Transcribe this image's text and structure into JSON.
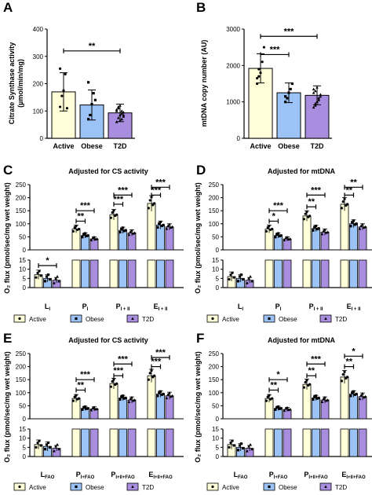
{
  "colors": {
    "Active": "#ffffd9",
    "Obese": "#9cc3f5",
    "T2D": "#a98ee0"
  },
  "panel_labels": {
    "A": "A",
    "B": "B",
    "C": "C",
    "D": "D",
    "E": "E",
    "F": "F"
  },
  "groups": [
    "Active",
    "Obese",
    "T2D"
  ],
  "chart_data": [
    {
      "id": "A",
      "type": "bar",
      "title": "",
      "ylabel": "Citrate Synthase activity\n(µmol/min/mg)",
      "ylim": [
        0,
        400
      ],
      "yticks": [
        0,
        100,
        200,
        300,
        400
      ],
      "categories": [
        "Active",
        "Obese",
        "T2D"
      ],
      "values": [
        170,
        122,
        93
      ],
      "errors": [
        70,
        55,
        32
      ],
      "points": [
        [
          115,
          155,
          175,
          235,
          110,
          255
        ],
        [
          70,
          85,
          125,
          165,
          140,
          205
        ],
        [
          60,
          75,
          85,
          90,
          95,
          100,
          110,
          120,
          70,
          80,
          105,
          115,
          65,
          100,
          85
        ]
      ],
      "significance": [
        {
          "from": 0,
          "to": 2,
          "label": "**",
          "y": 320
        }
      ]
    },
    {
      "id": "B",
      "type": "bar",
      "title": "",
      "ylabel": "mtDNA copy number (AU)",
      "ylim": [
        0,
        3000
      ],
      "yticks": [
        0,
        1000,
        2000,
        3000
      ],
      "categories": [
        "Active",
        "Obese",
        "T2D"
      ],
      "values": [
        1920,
        1250,
        1180
      ],
      "errors": [
        400,
        270,
        260
      ],
      "points": [
        [
          1500,
          1700,
          1800,
          2100,
          2500,
          1650,
          1900
        ],
        [
          1000,
          1100,
          1250,
          1350,
          1500,
          1150
        ],
        [
          850,
          950,
          1000,
          1100,
          1150,
          1250,
          1300,
          1400,
          1050,
          1200,
          1350,
          900,
          1000,
          1100
        ]
      ],
      "significance": [
        {
          "from": 0,
          "to": 1,
          "label": "***",
          "y": 2300
        },
        {
          "from": 0,
          "to": 2,
          "label": "***",
          "y": 2800
        }
      ]
    },
    {
      "id": "C",
      "type": "bar",
      "title": "Adjusted for CS activity",
      "categories": [
        "L",
        "P",
        "P",
        "E"
      ],
      "subscripts": [
        "I",
        "I",
        "I + II",
        "I + II"
      ],
      "lower": {
        "ylim": [
          0,
          15
        ],
        "yticks": [
          0,
          5,
          10,
          15
        ],
        "values": [
          [
            7,
            5,
            4
          ]
        ],
        "errors": [
          [
            2.5,
            2,
            1.5
          ]
        ],
        "significance": [
          {
            "from": 0,
            "to": 2,
            "label": "*",
            "y": 12
          }
        ]
      },
      "upper": {
        "ylim": [
          0,
          250
        ],
        "yticks": [
          0,
          50,
          100,
          150,
          200,
          250
        ],
        "values": [
          [
            80,
            55,
            42
          ],
          [
            135,
            75,
            65
          ],
          [
            178,
            95,
            88
          ]
        ],
        "errors": [
          [
            15,
            10,
            8
          ],
          [
            20,
            12,
            12
          ],
          [
            30,
            15,
            12
          ]
        ],
        "significance": [
          {
            "cat": 1,
            "from": 0,
            "to": 1,
            "label": "**",
            "y": 110
          },
          {
            "cat": 1,
            "from": 0,
            "to": 2,
            "label": "***",
            "y": 150
          },
          {
            "cat": 2,
            "from": 0,
            "to": 1,
            "label": "***",
            "y": 175
          },
          {
            "cat": 2,
            "from": 0,
            "to": 2,
            "label": "***",
            "y": 210
          },
          {
            "cat": 3,
            "from": 0,
            "to": 1,
            "label": "***",
            "y": 210
          },
          {
            "cat": 3,
            "from": 0,
            "to": 2,
            "label": "***",
            "y": 240
          }
        ]
      },
      "ylabel": "O₂ flux (pmol/sec/mg wet weight)"
    },
    {
      "id": "D",
      "type": "bar",
      "title": "Adjusted for mtDNA",
      "categories": [
        "L",
        "P",
        "P",
        "E"
      ],
      "subscripts": [
        "I",
        "I",
        "I + II",
        "I + II"
      ],
      "lower": {
        "ylim": [
          0,
          15
        ],
        "yticks": [
          0,
          5,
          10,
          15
        ],
        "values": [
          [
            6,
            5,
            4
          ]
        ],
        "errors": [
          [
            2.5,
            2,
            1.5
          ]
        ],
        "significance": []
      },
      "upper": {
        "ylim": [
          0,
          250
        ],
        "yticks": [
          0,
          50,
          100,
          150,
          200,
          250
        ],
        "values": [
          [
            80,
            55,
            42
          ],
          [
            130,
            82,
            68
          ],
          [
            175,
            100,
            88
          ]
        ],
        "errors": [
          [
            15,
            10,
            8
          ],
          [
            20,
            12,
            12
          ],
          [
            25,
            15,
            12
          ]
        ],
        "significance": [
          {
            "cat": 1,
            "from": 0,
            "to": 1,
            "label": "*",
            "y": 110
          },
          {
            "cat": 1,
            "from": 0,
            "to": 2,
            "label": "***",
            "y": 150
          },
          {
            "cat": 2,
            "from": 0,
            "to": 1,
            "label": "**",
            "y": 165
          },
          {
            "cat": 2,
            "from": 0,
            "to": 2,
            "label": "***",
            "y": 210
          },
          {
            "cat": 3,
            "from": 0,
            "to": 1,
            "label": "**",
            "y": 210
          },
          {
            "cat": 3,
            "from": 0,
            "to": 2,
            "label": "**",
            "y": 240
          }
        ]
      },
      "ylabel": "O₂ flux (pmol/sec/mg wet weight)"
    },
    {
      "id": "E",
      "type": "bar",
      "title": "Adjusted for CS activity",
      "categories": [
        "L",
        "P",
        "P",
        "E"
      ],
      "subscripts": [
        "FAO",
        "I+FAO",
        "I+II+FAO",
        "I+II+FAO"
      ],
      "lower": {
        "ylim": [
          0,
          15
        ],
        "yticks": [
          0,
          5,
          10,
          15
        ],
        "values": [
          [
            6.5,
            5.5,
            4.5
          ]
        ],
        "errors": [
          [
            2.5,
            2.5,
            1.5
          ]
        ],
        "significance": []
      },
      "upper": {
        "ylim": [
          0,
          250
        ],
        "yticks": [
          0,
          50,
          100,
          150,
          200,
          250
        ],
        "values": [
          [
            78,
            40,
            38
          ],
          [
            135,
            80,
            72
          ],
          [
            165,
            95,
            88
          ]
        ],
        "errors": [
          [
            15,
            8,
            8
          ],
          [
            20,
            10,
            12
          ],
          [
            25,
            12,
            14
          ]
        ],
        "significance": [
          {
            "cat": 1,
            "from": 0,
            "to": 1,
            "label": "**",
            "y": 110
          },
          {
            "cat": 1,
            "from": 0,
            "to": 2,
            "label": "***",
            "y": 150
          },
          {
            "cat": 2,
            "from": 0,
            "to": 1,
            "label": "***",
            "y": 165
          },
          {
            "cat": 2,
            "from": 0,
            "to": 2,
            "label": "***",
            "y": 210
          },
          {
            "cat": 3,
            "from": 0,
            "to": 1,
            "label": "***",
            "y": 200
          },
          {
            "cat": 3,
            "from": 0,
            "to": 2,
            "label": "***",
            "y": 235
          }
        ]
      },
      "ylabel": "O₂ flux (pmol/sec/mg wet weight)"
    },
    {
      "id": "F",
      "type": "bar",
      "title": "Adjusted for mtDNA",
      "categories": [
        "L",
        "P",
        "P",
        "E"
      ],
      "subscripts": [
        "FAO",
        "I+FAO",
        "I+II+FAO",
        "I+II+FAO"
      ],
      "lower": {
        "ylim": [
          0,
          15
        ],
        "yticks": [
          0,
          5,
          10,
          15
        ],
        "values": [
          [
            6.5,
            5,
            4.5
          ]
        ],
        "errors": [
          [
            2.5,
            2,
            1.5
          ]
        ],
        "significance": []
      },
      "upper": {
        "ylim": [
          0,
          250
        ],
        "yticks": [
          0,
          50,
          100,
          150,
          200,
          250
        ],
        "values": [
          [
            78,
            40,
            36
          ],
          [
            132,
            80,
            72
          ],
          [
            160,
            95,
            85
          ]
        ],
        "errors": [
          [
            15,
            8,
            8
          ],
          [
            20,
            10,
            12
          ],
          [
            25,
            12,
            14
          ]
        ],
        "significance": [
          {
            "cat": 1,
            "from": 0,
            "to": 1,
            "label": "**",
            "y": 110
          },
          {
            "cat": 1,
            "from": 0,
            "to": 2,
            "label": "*",
            "y": 150
          },
          {
            "cat": 2,
            "from": 0,
            "to": 1,
            "label": "**",
            "y": 165
          },
          {
            "cat": 2,
            "from": 0,
            "to": 2,
            "label": "***",
            "y": 210
          },
          {
            "cat": 3,
            "from": 0,
            "to": 1,
            "label": "**",
            "y": 200
          },
          {
            "cat": 3,
            "from": 0,
            "to": 2,
            "label": "*",
            "y": 240
          }
        ]
      },
      "ylabel": "O₂ flux (pmol/sec/mg wet weight)"
    }
  ]
}
